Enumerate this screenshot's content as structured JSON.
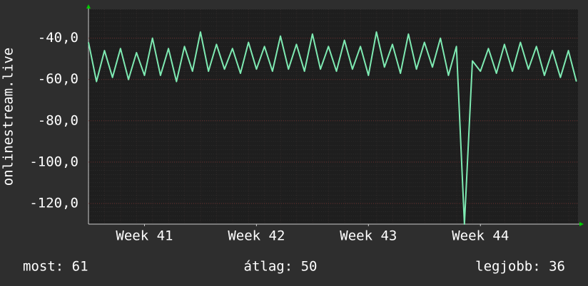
{
  "chart_data": {
    "type": "line",
    "y_label": "onlinestream.live",
    "x": [
      0,
      0.5,
      1,
      1.5,
      2,
      2.5,
      3,
      3.5,
      4,
      4.5,
      5,
      5.5,
      6,
      6.5,
      7,
      7.5,
      8,
      8.5,
      9,
      9.5,
      10,
      10.5,
      11,
      11.5,
      12,
      12.5,
      13,
      13.5,
      14,
      14.5,
      15,
      15.5,
      16,
      16.5,
      17,
      17.5,
      18,
      18.5,
      19,
      19.5,
      20,
      20.5,
      21,
      21.5,
      22,
      22.5,
      23,
      23.5,
      24,
      24.5,
      25,
      25.5,
      26,
      26.5,
      27,
      27.5,
      28,
      28.5,
      29,
      29.5,
      30,
      30.5
    ],
    "series": [
      {
        "color": "#7eeab2",
        "values": [
          -42,
          -61,
          -46,
          -59,
          -45,
          -60,
          -47,
          -58,
          -40,
          -58,
          -45,
          -61,
          -44,
          -56,
          -37,
          -56,
          -43,
          -55,
          -45,
          -57,
          -42,
          -55,
          -44,
          -56,
          -39,
          -55,
          -43,
          -56,
          -38,
          -55,
          -44,
          -56,
          -41,
          -55,
          -44,
          -58,
          -37,
          -54,
          -43,
          -57,
          -38,
          -55,
          -42,
          -54,
          -40,
          -58,
          -44,
          -130,
          -51,
          -56,
          -45,
          -57,
          -43,
          -56,
          -42,
          -55,
          -44,
          -58,
          -46,
          -59,
          -46,
          -61
        ]
      }
    ],
    "xlim": [
      0,
      30.6
    ],
    "xticks": [
      {
        "value": 3.5,
        "label": "Week 41"
      },
      {
        "value": 10.5,
        "label": "Week 42"
      },
      {
        "value": 17.5,
        "label": "Week 43"
      },
      {
        "value": 24.5,
        "label": "Week 44"
      }
    ],
    "ylim": [
      -130,
      -26
    ],
    "yticks": [
      {
        "value": -40,
        "label": "-40,0"
      },
      {
        "value": -60,
        "label": "-60,0"
      },
      {
        "value": -80,
        "label": "-80,0"
      },
      {
        "value": -100,
        "label": "-100,0"
      },
      {
        "value": -120,
        "label": "-120,0"
      }
    ],
    "grid": true,
    "footer": {
      "current": "most: 61",
      "average": "átlag: 50",
      "best": "legjobb: 36"
    }
  }
}
